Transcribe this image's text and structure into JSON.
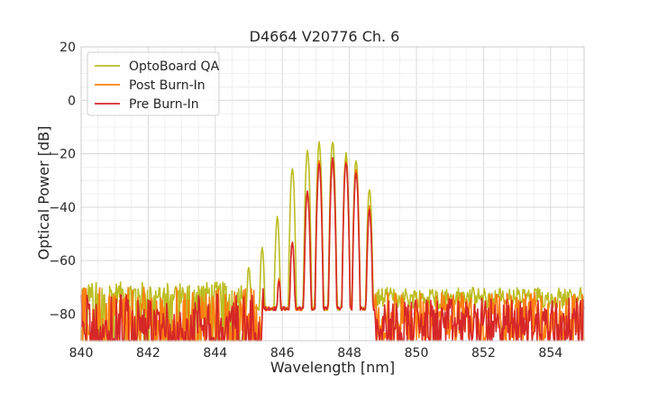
{
  "chart_data": {
    "type": "line",
    "title": "D4664 V20776 Ch. 6",
    "xlabel": "Wavelength [nm]",
    "ylabel": "Optical Power [dB]",
    "xlim": [
      840,
      855
    ],
    "ylim": [
      -90,
      20
    ],
    "xticks": [
      840,
      842,
      844,
      846,
      848,
      850,
      852,
      854
    ],
    "yticks": [
      20,
      0,
      -20,
      -40,
      -60,
      -80
    ],
    "grid": true,
    "legend_position": "upper-left",
    "noise_floor": {
      "optoboard_qa": {
        "x_range": [
          840,
          845
        ],
        "level": -72,
        "spread": 4
      },
      "post_burn_in": {
        "x_range": [
          840,
          845.4
        ],
        "level": -80,
        "spread": 10
      },
      "pre_burn_in": {
        "x_range": [
          840,
          845.4
        ],
        "level": -82,
        "spread": 10
      }
    },
    "series": [
      {
        "name": "OptoBoard QA",
        "color": "#bcbd22",
        "peaks": [
          {
            "x": 845.0,
            "y": -62
          },
          {
            "x": 845.4,
            "y": -55
          },
          {
            "x": 845.85,
            "y": -44
          },
          {
            "x": 846.3,
            "y": -25
          },
          {
            "x": 846.75,
            "y": -19
          },
          {
            "x": 847.1,
            "y": -16
          },
          {
            "x": 847.5,
            "y": -15
          },
          {
            "x": 847.9,
            "y": -20
          },
          {
            "x": 848.2,
            "y": -22
          },
          {
            "x": 848.6,
            "y": -33
          }
        ],
        "edge_start": 844.9,
        "edge_end": 848.75
      },
      {
        "name": "Post Burn-In",
        "color": "#ff7f0e",
        "peaks": [
          {
            "x": 845.4,
            "y": -70
          },
          {
            "x": 845.9,
            "y": -66
          },
          {
            "x": 846.3,
            "y": -53
          },
          {
            "x": 846.75,
            "y": -34
          },
          {
            "x": 847.1,
            "y": -23
          },
          {
            "x": 847.5,
            "y": -23
          },
          {
            "x": 847.9,
            "y": -23
          },
          {
            "x": 848.2,
            "y": -26
          },
          {
            "x": 848.6,
            "y": -40
          }
        ],
        "edge_start": 845.4,
        "edge_end": 848.75
      },
      {
        "name": "Pre Burn-In",
        "color": "#d62728",
        "peaks": [
          {
            "x": 845.4,
            "y": -69
          },
          {
            "x": 845.9,
            "y": -67
          },
          {
            "x": 846.3,
            "y": -53
          },
          {
            "x": 846.75,
            "y": -34
          },
          {
            "x": 847.1,
            "y": -24
          },
          {
            "x": 847.5,
            "y": -22
          },
          {
            "x": 847.9,
            "y": -23
          },
          {
            "x": 848.2,
            "y": -27
          },
          {
            "x": 848.6,
            "y": -41
          }
        ],
        "edge_start": 845.4,
        "edge_end": 848.75
      }
    ]
  }
}
